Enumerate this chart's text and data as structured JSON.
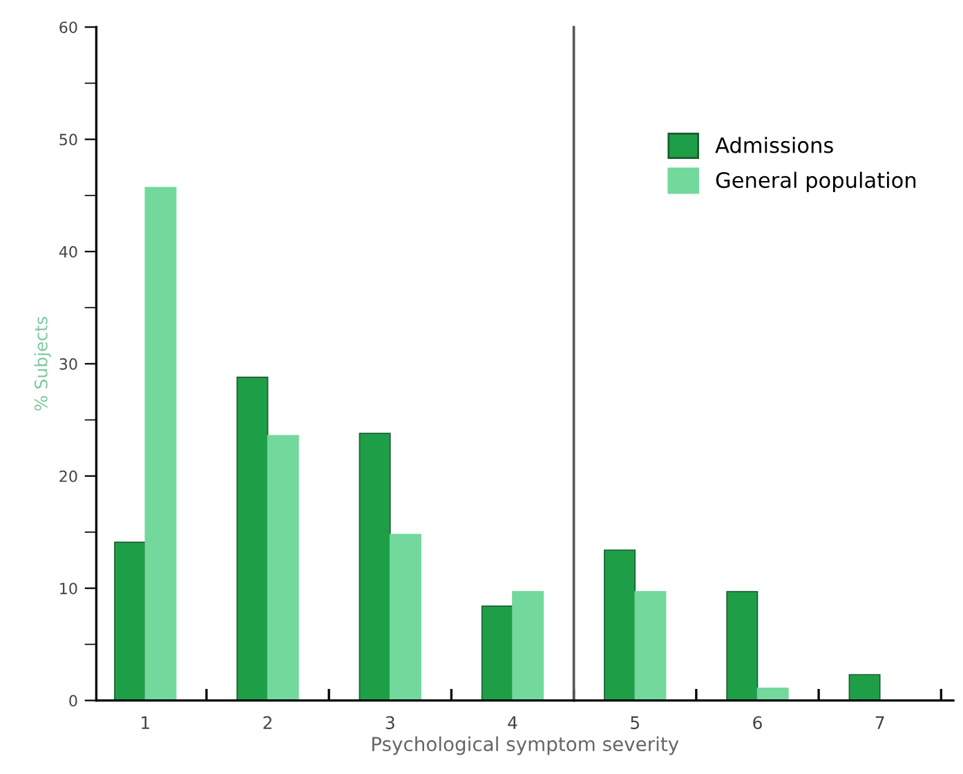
{
  "chart_data": {
    "type": "bar",
    "xlabel": "Psychological symptom severity",
    "ylabel": "% Subjects",
    "x": [
      1,
      2,
      3,
      4,
      5,
      6,
      7
    ],
    "series": [
      {
        "name": "Admissions",
        "color": "#1f9e48",
        "values": [
          14.1,
          28.8,
          23.8,
          8.4,
          13.4,
          9.7,
          2.3
        ]
      },
      {
        "name": "General population",
        "color": "#72d89c",
        "values": [
          45.7,
          23.6,
          14.8,
          9.7,
          9.7,
          1.1,
          null
        ]
      }
    ],
    "xlim": [
      0.6,
      7.6
    ],
    "xticks": [
      1,
      2,
      3,
      4,
      5,
      6,
      7,
      {
        "value": 1.5,
        "label": null
      },
      {
        "value": 2.5,
        "label": null
      },
      {
        "value": 3.5,
        "label": null
      },
      {
        "value": 4.5,
        "label": null
      },
      {
        "value": 5.5,
        "label": null
      },
      {
        "value": 6.5,
        "label": null
      },
      {
        "value": 7.5,
        "label": null
      }
    ],
    "ylim": [
      0,
      60
    ],
    "yticks": [
      0,
      10,
      20,
      30,
      40,
      50,
      60,
      {
        "value": 5,
        "label": null
      },
      {
        "value": 15,
        "label": null
      },
      {
        "value": 25,
        "label": null
      },
      {
        "value": 35,
        "label": null
      },
      {
        "value": 45,
        "label": null
      },
      {
        "value": 55,
        "label": null
      }
    ],
    "ref_lines": [
      {
        "axis": "x",
        "value": 4.5,
        "color": "#555555"
      }
    ],
    "legend": "top right",
    "grid": false
  }
}
